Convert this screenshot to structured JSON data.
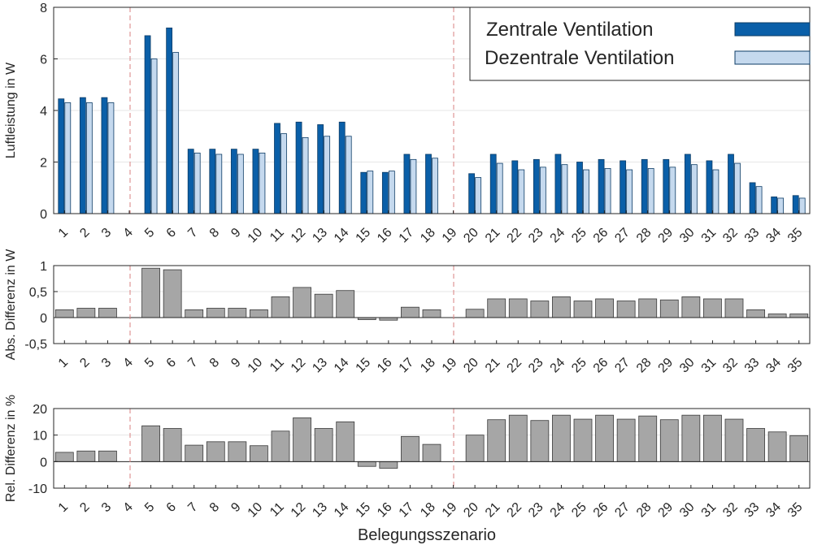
{
  "chart_data": [
    {
      "type": "bar",
      "ylabel": "Luftleistung in W",
      "ylim": [
        0,
        8
      ],
      "yticks": [
        "0",
        "2",
        "4",
        "6",
        "8"
      ],
      "grid": "horizontal",
      "legend_placement": "top-right",
      "categories": [
        "1",
        "2",
        "3",
        "4",
        "5",
        "6",
        "7",
        "8",
        "9",
        "10",
        "11",
        "12",
        "13",
        "14",
        "15",
        "16",
        "17",
        "18",
        "19",
        "20",
        "21",
        "22",
        "23",
        "24",
        "25",
        "26",
        "27",
        "28",
        "29",
        "30",
        "31",
        "32",
        "33",
        "34",
        "35"
      ],
      "separators_after": [
        "4",
        "19"
      ],
      "series": [
        {
          "name": "Zentrale Ventilation",
          "color": "#0a5fa8",
          "values": [
            4.45,
            4.5,
            4.5,
            null,
            6.9,
            7.2,
            2.5,
            2.5,
            2.5,
            2.5,
            3.5,
            3.55,
            3.45,
            3.55,
            1.6,
            1.6,
            2.3,
            2.3,
            null,
            1.55,
            2.3,
            2.05,
            2.1,
            2.3,
            2.0,
            2.1,
            2.05,
            2.1,
            2.1,
            2.3,
            2.05,
            2.3,
            1.2,
            0.65,
            0.7
          ]
        },
        {
          "name": "Dezentrale Ventilation",
          "color": "#c5d9ee",
          "values": [
            4.3,
            4.3,
            4.3,
            null,
            6.0,
            6.25,
            2.35,
            2.3,
            2.3,
            2.35,
            3.1,
            2.95,
            3.0,
            3.0,
            1.65,
            1.65,
            2.1,
            2.15,
            null,
            1.4,
            1.95,
            1.7,
            1.8,
            1.9,
            1.7,
            1.75,
            1.7,
            1.75,
            1.8,
            1.9,
            1.7,
            1.95,
            1.05,
            0.6,
            0.6
          ]
        }
      ]
    },
    {
      "type": "bar",
      "ylabel": "Abs. Differenz in W",
      "ylim": [
        -0.5,
        1
      ],
      "yticks": [
        "-0,5",
        "0",
        "0,5",
        "1"
      ],
      "grid": "horizontal",
      "categories": [
        "1",
        "2",
        "3",
        "4",
        "5",
        "6",
        "7",
        "8",
        "9",
        "10",
        "11",
        "12",
        "13",
        "14",
        "15",
        "16",
        "17",
        "18",
        "19",
        "20",
        "21",
        "22",
        "23",
        "24",
        "25",
        "26",
        "27",
        "28",
        "29",
        "30",
        "31",
        "32",
        "33",
        "34",
        "35"
      ],
      "separators_after": [
        "4",
        "19"
      ],
      "series": [
        {
          "color": "#a6a6a6",
          "values": [
            0.15,
            0.18,
            0.18,
            null,
            0.95,
            0.92,
            0.15,
            0.18,
            0.18,
            0.15,
            0.4,
            0.58,
            0.45,
            0.52,
            -0.04,
            -0.05,
            0.2,
            0.15,
            null,
            0.16,
            0.36,
            0.36,
            0.32,
            0.4,
            0.32,
            0.36,
            0.32,
            0.36,
            0.34,
            0.4,
            0.36,
            0.36,
            0.15,
            0.07,
            0.07
          ]
        }
      ]
    },
    {
      "type": "bar",
      "ylabel": "Rel. Differenz in %",
      "ylim": [
        -10,
        20
      ],
      "yticks": [
        "-10",
        "0",
        "10",
        "20"
      ],
      "grid": "horizontal",
      "xlabel": "Belegungsszenario",
      "categories": [
        "1",
        "2",
        "3",
        "4",
        "5",
        "6",
        "7",
        "8",
        "9",
        "10",
        "11",
        "12",
        "13",
        "14",
        "15",
        "16",
        "17",
        "18",
        "19",
        "20",
        "21",
        "22",
        "23",
        "24",
        "25",
        "26",
        "27",
        "28",
        "29",
        "30",
        "31",
        "32",
        "33",
        "34",
        "35"
      ],
      "separators_after": [
        "4",
        "19"
      ],
      "series": [
        {
          "color": "#a6a6a6",
          "values": [
            3.5,
            4.0,
            4.0,
            null,
            13.5,
            12.5,
            6.2,
            7.5,
            7.5,
            6.0,
            11.5,
            16.5,
            12.5,
            15.0,
            -1.8,
            -2.5,
            9.5,
            6.5,
            null,
            10.0,
            15.8,
            17.5,
            15.5,
            17.5,
            16.0,
            17.5,
            16.0,
            17.2,
            15.8,
            17.5,
            17.5,
            16.0,
            12.5,
            11.2,
            9.8
          ]
        }
      ]
    }
  ]
}
